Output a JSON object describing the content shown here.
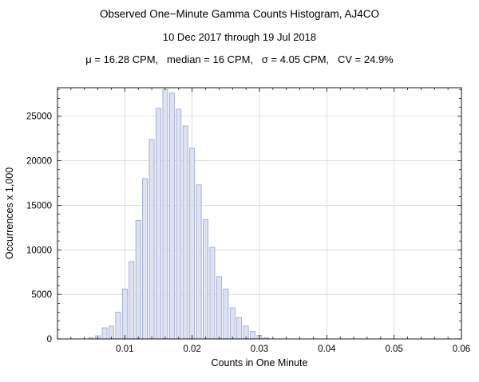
{
  "header": {
    "title": "Observed One−Minute Gamma Counts Histogram, AJ4CO",
    "subtitle": "10 Dec 2017 through 19 Jul 2018",
    "stats": "μ = 16.28 CPM,   median = 16 CPM,   σ = 4.05 CPM,   CV = 24.9%"
  },
  "chart_data": {
    "type": "bar",
    "title": "Observed One−Minute Gamma Counts Histogram, AJ4CO",
    "subtitle": "10 Dec 2017 through 19 Jul 2018",
    "annotation": "μ = 16.28 CPM, median = 16 CPM, σ = 4.05 CPM, CV = 24.9%",
    "xlabel": "Counts in One Minute",
    "ylabel": "Occurrences x 1,000",
    "xlim": [
      0,
      0.06
    ],
    "ylim": [
      0,
      28200
    ],
    "bin_width": 0.001,
    "x": [
      0.005,
      0.006,
      0.007,
      0.008,
      0.009,
      0.01,
      0.011,
      0.012,
      0.013,
      0.014,
      0.015,
      0.016,
      0.017,
      0.018,
      0.019,
      0.02,
      0.021,
      0.022,
      0.023,
      0.024,
      0.025,
      0.026,
      0.027,
      0.028,
      0.029,
      0.03,
      0.031
    ],
    "values": [
      150,
      350,
      1250,
      1450,
      3000,
      5600,
      8700,
      13300,
      18000,
      22400,
      25900,
      28000,
      27600,
      25800,
      23900,
      21400,
      17300,
      13400,
      10300,
      7000,
      5600,
      3500,
      2400,
      1450,
      850,
      400,
      150
    ],
    "x_ticks": [
      {
        "value": 0.01,
        "label": "0.01"
      },
      {
        "value": 0.02,
        "label": "0.02"
      },
      {
        "value": 0.03,
        "label": "0.03"
      },
      {
        "value": 0.04,
        "label": "0.04"
      },
      {
        "value": 0.05,
        "label": "0.05"
      },
      {
        "value": 0.06,
        "label": "0.06"
      }
    ],
    "y_ticks": [
      {
        "value": 0,
        "label": "0"
      },
      {
        "value": 5000,
        "label": "5000"
      },
      {
        "value": 10000,
        "label": "10000"
      },
      {
        "value": 15000,
        "label": "15000"
      },
      {
        "value": 20000,
        "label": "20000"
      },
      {
        "value": 25000,
        "label": "25000"
      }
    ],
    "x_minor_step": 0.002,
    "y_minor_step": 1000,
    "grid": true,
    "legend": "none",
    "colors": {
      "bar_fill": "#dde1f3",
      "bar_edge": "#99a3c9",
      "grid": "#c9c9c9",
      "frame": "#000000",
      "text": "#000000"
    }
  }
}
